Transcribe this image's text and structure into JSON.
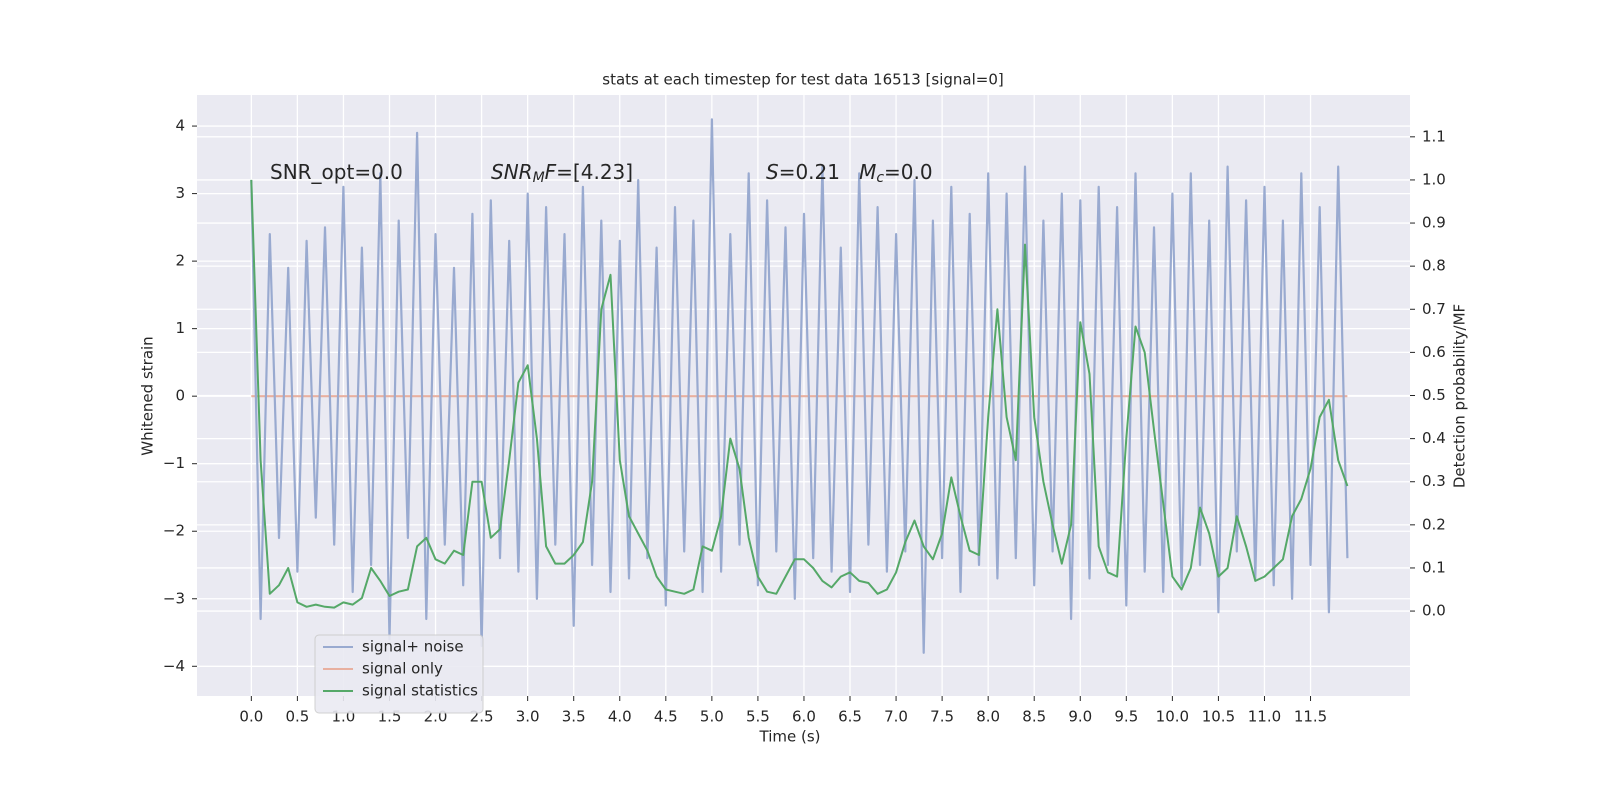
{
  "chart_data": {
    "type": "line",
    "title": "stats at each timestep for test data 16513 [signal=0]",
    "xlabel": "Time (s)",
    "ylabel": "Whitened strain",
    "y2label": "Detection probability/MF",
    "annotations": [
      [
        {
          "text": "SNR_opt=0.0"
        }
      ],
      [
        {
          "text": "SNR",
          "italic": true
        },
        {
          "text": "M",
          "italic": true,
          "sub": true
        },
        {
          "text": "F",
          "italic": true
        },
        {
          "text": "=[4.23]"
        }
      ],
      [
        {
          "text": "S",
          "italic": true
        },
        {
          "text": "=0.21   "
        },
        {
          "text": "M",
          "italic": true
        },
        {
          "text": "c",
          "italic": true,
          "sub": true
        },
        {
          "text": "=0.0"
        }
      ]
    ],
    "x": [
      0.0,
      0.1,
      0.2,
      0.3,
      0.4,
      0.5,
      0.6,
      0.7,
      0.8,
      0.9,
      1.0,
      1.1,
      1.2,
      1.3,
      1.4,
      1.5,
      1.6,
      1.7,
      1.8,
      1.9,
      2.0,
      2.1,
      2.2,
      2.3,
      2.4,
      2.5,
      2.6,
      2.7,
      2.8,
      2.9,
      3.0,
      3.1,
      3.2,
      3.3,
      3.4,
      3.5,
      3.6,
      3.7,
      3.8,
      3.9,
      4.0,
      4.1,
      4.2,
      4.3,
      4.4,
      4.5,
      4.6,
      4.7,
      4.8,
      4.9,
      5.0,
      5.1,
      5.2,
      5.3,
      5.4,
      5.5,
      5.6,
      5.7,
      5.8,
      5.9,
      6.0,
      6.1,
      6.2,
      6.3,
      6.4,
      6.5,
      6.6,
      6.7,
      6.8,
      6.9,
      7.0,
      7.1,
      7.2,
      7.3,
      7.4,
      7.5,
      7.6,
      7.7,
      7.8,
      7.9,
      8.0,
      8.1,
      8.2,
      8.3,
      8.4,
      8.5,
      8.6,
      8.7,
      8.8,
      8.9,
      9.0,
      9.1,
      9.2,
      9.3,
      9.4,
      9.5,
      9.6,
      9.7,
      9.8,
      9.9,
      10.0,
      10.1,
      10.2,
      10.3,
      10.4,
      10.5,
      10.6,
      10.7,
      10.8,
      10.9,
      11.0,
      11.1,
      11.2,
      11.3,
      11.4,
      11.5,
      11.6,
      11.7,
      11.8,
      11.9
    ],
    "series": [
      {
        "name": "signal+ noise",
        "color": "#99aad0",
        "values": [
          3.2,
          -3.3,
          2.4,
          -2.1,
          1.9,
          -2.6,
          2.3,
          -1.8,
          2.5,
          -2.2,
          3.1,
          -2.9,
          2.2,
          -2.5,
          3.3,
          -3.6,
          2.6,
          -2.1,
          3.9,
          -3.3,
          2.4,
          -2.2,
          1.9,
          -2.8,
          2.7,
          -3.7,
          2.9,
          -2.4,
          2.3,
          -2.6,
          3.0,
          -3.0,
          2.8,
          -2.2,
          2.4,
          -3.4,
          3.1,
          -2.5,
          2.6,
          -2.9,
          2.3,
          -2.7,
          3.2,
          -2.4,
          2.2,
          -3.1,
          2.8,
          -2.3,
          2.6,
          -2.9,
          4.1,
          -2.6,
          2.4,
          -2.2,
          3.3,
          -2.8,
          2.9,
          -2.3,
          2.5,
          -3.0,
          2.7,
          -2.4,
          3.4,
          -2.6,
          2.2,
          -2.9,
          3.3,
          -2.2,
          2.8,
          -2.6,
          2.4,
          -2.3,
          3.2,
          -3.8,
          2.6,
          -2.4,
          3.1,
          -2.9,
          2.7,
          -2.5,
          3.3,
          -2.7,
          3.0,
          -2.4,
          3.4,
          -2.8,
          2.6,
          -2.3,
          3.0,
          -3.3,
          2.9,
          -2.7,
          3.1,
          -2.5,
          2.8,
          -3.1,
          3.3,
          -2.6,
          2.5,
          -2.9,
          3.0,
          -2.8,
          3.3,
          -2.5,
          2.6,
          -3.2,
          3.4,
          -2.3,
          2.9,
          -2.7,
          3.1,
          -2.8,
          2.6,
          -3.0,
          3.3,
          -2.5,
          2.8,
          -3.2,
          3.4,
          -2.4
        ]
      },
      {
        "name": "signal only",
        "color": "#e8b0a0",
        "values": [
          0,
          0,
          0,
          0,
          0,
          0,
          0,
          0,
          0,
          0,
          0,
          0,
          0,
          0,
          0,
          0,
          0,
          0,
          0,
          0,
          0,
          0,
          0,
          0,
          0,
          0,
          0,
          0,
          0,
          0,
          0,
          0,
          0,
          0,
          0,
          0,
          0,
          0,
          0,
          0,
          0,
          0,
          0,
          0,
          0,
          0,
          0,
          0,
          0,
          0,
          0,
          0,
          0,
          0,
          0,
          0,
          0,
          0,
          0,
          0,
          0,
          0,
          0,
          0,
          0,
          0,
          0,
          0,
          0,
          0,
          0,
          0,
          0,
          0,
          0,
          0,
          0,
          0,
          0,
          0,
          0,
          0,
          0,
          0,
          0,
          0,
          0,
          0,
          0,
          0,
          0,
          0,
          0,
          0,
          0,
          0,
          0,
          0,
          0,
          0,
          0,
          0,
          0,
          0,
          0,
          0,
          0,
          0,
          0,
          0,
          0,
          0,
          0,
          0,
          0,
          0,
          0,
          0,
          0,
          0
        ]
      },
      {
        "name": "signal statistics",
        "color": "#55a868",
        "axis": "y2",
        "values": [
          1.0,
          0.35,
          0.04,
          0.06,
          0.1,
          0.02,
          0.01,
          0.015,
          0.01,
          0.008,
          0.02,
          0.015,
          0.03,
          0.1,
          0.07,
          0.035,
          0.045,
          0.05,
          0.15,
          0.17,
          0.12,
          0.11,
          0.14,
          0.13,
          0.3,
          0.3,
          0.17,
          0.19,
          0.35,
          0.53,
          0.57,
          0.4,
          0.15,
          0.11,
          0.11,
          0.13,
          0.16,
          0.3,
          0.7,
          0.78,
          0.35,
          0.22,
          0.18,
          0.14,
          0.08,
          0.05,
          0.045,
          0.04,
          0.05,
          0.15,
          0.14,
          0.22,
          0.4,
          0.33,
          0.17,
          0.08,
          0.045,
          0.04,
          0.08,
          0.12,
          0.12,
          0.1,
          0.07,
          0.055,
          0.08,
          0.09,
          0.07,
          0.065,
          0.04,
          0.05,
          0.09,
          0.16,
          0.21,
          0.15,
          0.12,
          0.18,
          0.31,
          0.22,
          0.14,
          0.13,
          0.45,
          0.7,
          0.45,
          0.35,
          0.85,
          0.45,
          0.3,
          0.2,
          0.11,
          0.2,
          0.67,
          0.55,
          0.15,
          0.09,
          0.08,
          0.4,
          0.66,
          0.6,
          0.42,
          0.25,
          0.08,
          0.05,
          0.1,
          0.24,
          0.18,
          0.08,
          0.1,
          0.22,
          0.15,
          0.07,
          0.08,
          0.1,
          0.12,
          0.22,
          0.26,
          0.33,
          0.45,
          0.49,
          0.35,
          0.29
        ]
      }
    ],
    "xlim": [
      -0.59,
      12.58
    ],
    "xticks": [
      {
        "value": 0,
        "label": "0.0"
      },
      {
        "value": 0.5,
        "label": "0.5"
      },
      {
        "value": 1,
        "label": "1.0"
      },
      {
        "value": 1.5,
        "label": "1.5"
      },
      {
        "value": 2,
        "label": "2.0"
      },
      {
        "value": 2.5,
        "label": "2.5"
      },
      {
        "value": 3,
        "label": "3.0"
      },
      {
        "value": 3.5,
        "label": "3.5"
      },
      {
        "value": 4,
        "label": "4.0"
      },
      {
        "value": 4.5,
        "label": "4.5"
      },
      {
        "value": 5,
        "label": "5.0"
      },
      {
        "value": 5.5,
        "label": "5.5"
      },
      {
        "value": 6,
        "label": "6.0"
      },
      {
        "value": 6.5,
        "label": "6.5"
      },
      {
        "value": 7,
        "label": "7.0"
      },
      {
        "value": 7.5,
        "label": "7.5"
      },
      {
        "value": 8,
        "label": "8.0"
      },
      {
        "value": 8.5,
        "label": "8.5"
      },
      {
        "value": 9,
        "label": "9.0"
      },
      {
        "value": 9.5,
        "label": "9.5"
      },
      {
        "value": 10,
        "label": "10.0"
      },
      {
        "value": 10.5,
        "label": "10.5"
      },
      {
        "value": 11,
        "label": "11.0"
      },
      {
        "value": 11.5,
        "label": "11.5"
      }
    ],
    "ylim": [
      -4.44,
      4.46
    ],
    "yticks": [
      {
        "value": -4,
        "label": "−4"
      },
      {
        "value": -3,
        "label": "−3"
      },
      {
        "value": -2,
        "label": "−2"
      },
      {
        "value": -1,
        "label": "−1"
      },
      0,
      1,
      2,
      3,
      4
    ],
    "y2lim": [
      -0.197,
      1.197
    ],
    "y2ticks": [
      {
        "value": 0,
        "label": "0.0"
      },
      0.1,
      0.2,
      0.3,
      0.4,
      0.5,
      0.6,
      0.7,
      0.8,
      0.9,
      {
        "value": 1,
        "label": "1.0"
      },
      1.1
    ],
    "grid": true,
    "legend": "lower left"
  }
}
